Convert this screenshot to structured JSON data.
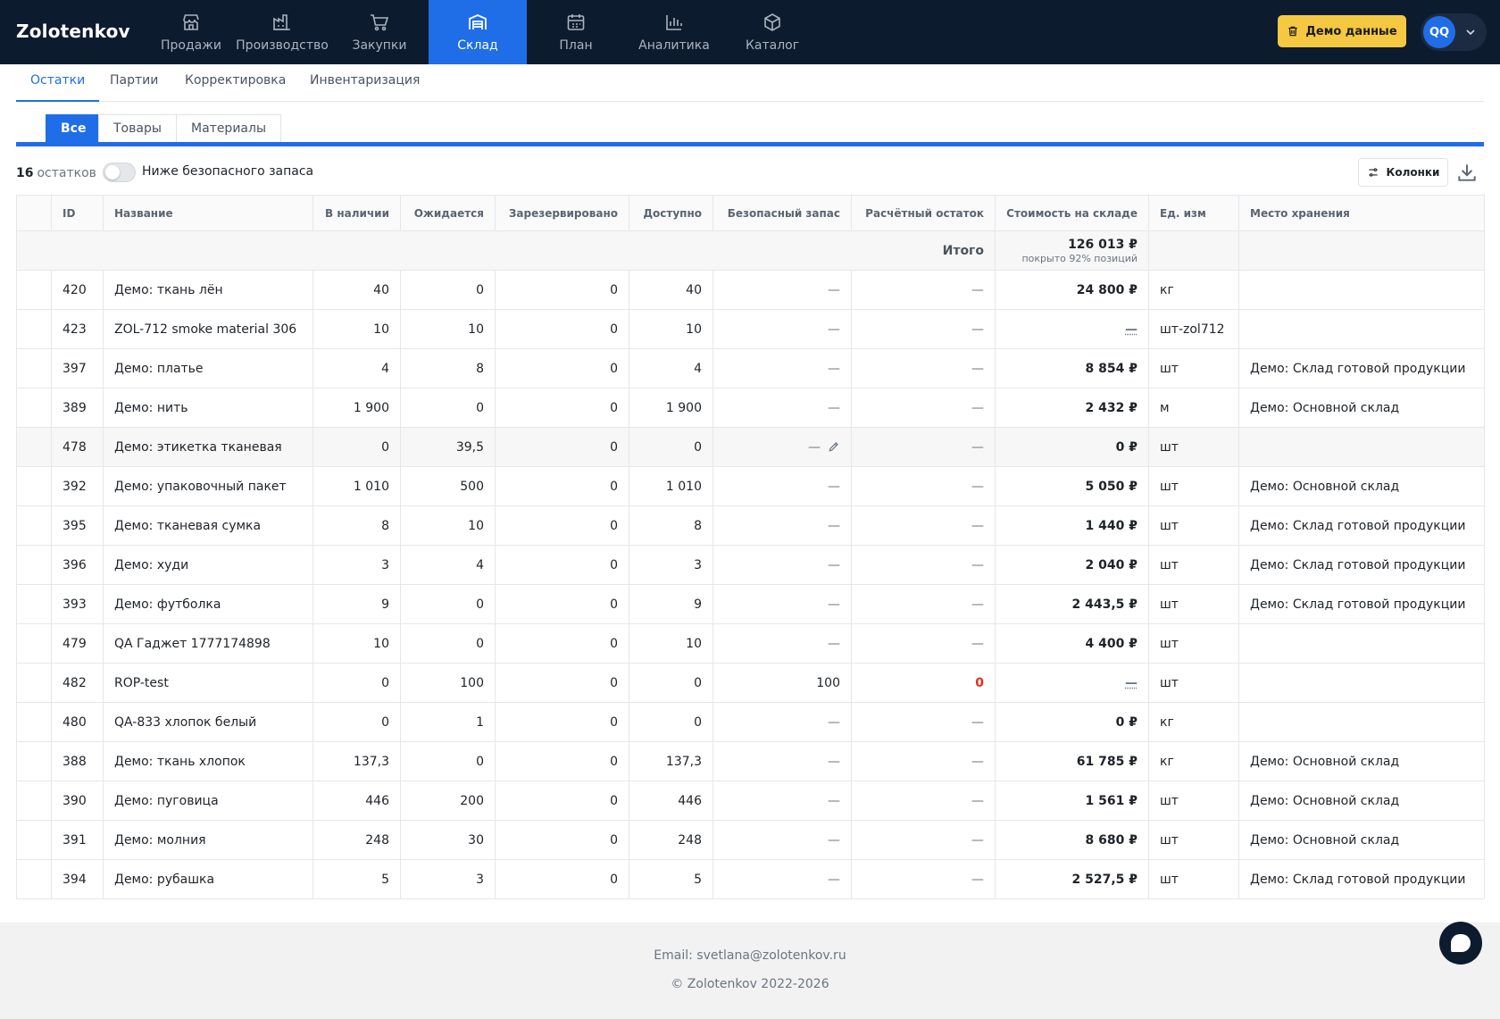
{
  "app": {
    "logo": "Zolotenkov"
  },
  "nav": {
    "items": [
      {
        "label": "Продажи",
        "icon": "store-icon"
      },
      {
        "label": "Производство",
        "icon": "factory-icon"
      },
      {
        "label": "Закупки",
        "icon": "cart-icon"
      },
      {
        "label": "Склад",
        "icon": "warehouse-icon",
        "active": true
      },
      {
        "label": "План",
        "icon": "calendar-icon"
      },
      {
        "label": "Аналитика",
        "icon": "bar-chart-icon"
      },
      {
        "label": "Каталог",
        "icon": "box-icon"
      }
    ],
    "demo_button": "Демо данные",
    "avatar": "QQ"
  },
  "subtabs": [
    "Остатки",
    "Партии",
    "Корректировка",
    "Инвентаризация"
  ],
  "filters": [
    "Все",
    "Товары",
    "Материалы"
  ],
  "toolbar": {
    "count": "16",
    "count_suffix": "остатков",
    "toggle_label": "Ниже безопасного запаса",
    "columns_button": "Колонки"
  },
  "table": {
    "headers": [
      "ID",
      "Название",
      "В наличии",
      "Ожидается",
      "Зарезервировано",
      "Доступно",
      "Безопасный запас",
      "Расчётный остаток",
      "Стоимость на складе",
      "Ед. изм",
      "Место хранения"
    ],
    "total_label": "Итого",
    "total_value": "126 013 ₽",
    "total_note": "покрыто 92% позиций",
    "rows": [
      {
        "id": "420",
        "name": "Демо: ткань лён",
        "stock": "40",
        "expected": "0",
        "reserved": "0",
        "available": "40",
        "safety": "—",
        "calc": "—",
        "cost": "24 800 ₽",
        "unit": "кг",
        "location": ""
      },
      {
        "id": "423",
        "name": "ZOL-712 smoke material 306",
        "stock": "10",
        "expected": "10",
        "reserved": "0",
        "available": "10",
        "safety": "—",
        "calc": "—",
        "cost": "—",
        "unit": "шт-zol712",
        "location": ""
      },
      {
        "id": "397",
        "name": "Демо: платье",
        "stock": "4",
        "expected": "8",
        "reserved": "0",
        "available": "4",
        "safety": "—",
        "calc": "—",
        "cost": "8 854 ₽",
        "unit": "шт",
        "location": "Демо: Склад готовой продукции"
      },
      {
        "id": "389",
        "name": "Демо: нить",
        "stock": "1 900",
        "expected": "0",
        "reserved": "0",
        "available": "1 900",
        "safety": "—",
        "calc": "—",
        "cost": "2 432 ₽",
        "unit": "м",
        "location": "Демо: Основной склад"
      },
      {
        "id": "478",
        "name": "Демо: этикетка тканевая",
        "stock": "0",
        "expected": "39,5",
        "reserved": "0",
        "available": "0",
        "safety": "—",
        "calc": "—",
        "cost": "0 ₽",
        "unit": "шт",
        "location": ""
      },
      {
        "id": "392",
        "name": "Демо: упаковочный пакет",
        "stock": "1 010",
        "expected": "500",
        "reserved": "0",
        "available": "1 010",
        "safety": "—",
        "calc": "—",
        "cost": "5 050 ₽",
        "unit": "шт",
        "location": "Демо: Основной склад"
      },
      {
        "id": "395",
        "name": "Демо: тканевая сумка",
        "stock": "8",
        "expected": "10",
        "reserved": "0",
        "available": "8",
        "safety": "—",
        "calc": "—",
        "cost": "1 440 ₽",
        "unit": "шт",
        "location": "Демо: Склад готовой продукции"
      },
      {
        "id": "396",
        "name": "Демо: худи",
        "stock": "3",
        "expected": "4",
        "reserved": "0",
        "available": "3",
        "safety": "—",
        "calc": "—",
        "cost": "2 040 ₽",
        "unit": "шт",
        "location": "Демо: Склад готовой продукции"
      },
      {
        "id": "393",
        "name": "Демо: футболка",
        "stock": "9",
        "expected": "0",
        "reserved": "0",
        "available": "9",
        "safety": "—",
        "calc": "—",
        "cost": "2 443,5 ₽",
        "unit": "шт",
        "location": "Демо: Склад готовой продукции"
      },
      {
        "id": "479",
        "name": "QA Гаджет 1777174898",
        "stock": "10",
        "expected": "0",
        "reserved": "0",
        "available": "10",
        "safety": "—",
        "calc": "—",
        "cost": "4 400 ₽",
        "unit": "шт",
        "location": ""
      },
      {
        "id": "482",
        "name": "ROP-test",
        "stock": "0",
        "expected": "100",
        "reserved": "0",
        "available": "0",
        "safety": "100",
        "calc": "0",
        "cost": "—",
        "unit": "шт",
        "location": ""
      },
      {
        "id": "480",
        "name": "QA-833 хлопок белый",
        "stock": "0",
        "expected": "1",
        "reserved": "0",
        "available": "0",
        "safety": "—",
        "calc": "—",
        "cost": "0 ₽",
        "unit": "кг",
        "location": ""
      },
      {
        "id": "388",
        "name": "Демо: ткань хлопок",
        "stock": "137,3",
        "expected": "0",
        "reserved": "0",
        "available": "137,3",
        "safety": "—",
        "calc": "—",
        "cost": "61 785 ₽",
        "unit": "кг",
        "location": "Демо: Основной склад"
      },
      {
        "id": "390",
        "name": "Демо: пуговица",
        "stock": "446",
        "expected": "200",
        "reserved": "0",
        "available": "446",
        "safety": "—",
        "calc": "—",
        "cost": "1 561 ₽",
        "unit": "шт",
        "location": "Демо: Основной склад"
      },
      {
        "id": "391",
        "name": "Демо: молния",
        "stock": "248",
        "expected": "30",
        "reserved": "0",
        "available": "248",
        "safety": "—",
        "calc": "—",
        "cost": "8 680 ₽",
        "unit": "шт",
        "location": "Демо: Основной склад"
      },
      {
        "id": "394",
        "name": "Демо: рубашка",
        "stock": "5",
        "expected": "3",
        "reserved": "0",
        "available": "5",
        "safety": "—",
        "calc": "—",
        "cost": "2 527,5 ₽",
        "unit": "шт",
        "location": "Демо: Склад готовой продукции"
      }
    ]
  },
  "footer": {
    "email": "Email: svetlana@zolotenkov.ru",
    "copyright": "© Zolotenkov 2022-2026"
  },
  "colors": {
    "nav_bg": "#0d1b2e",
    "accent": "#1f6ee8",
    "demo_button": "#f5c842",
    "negative": "#e0301e"
  }
}
